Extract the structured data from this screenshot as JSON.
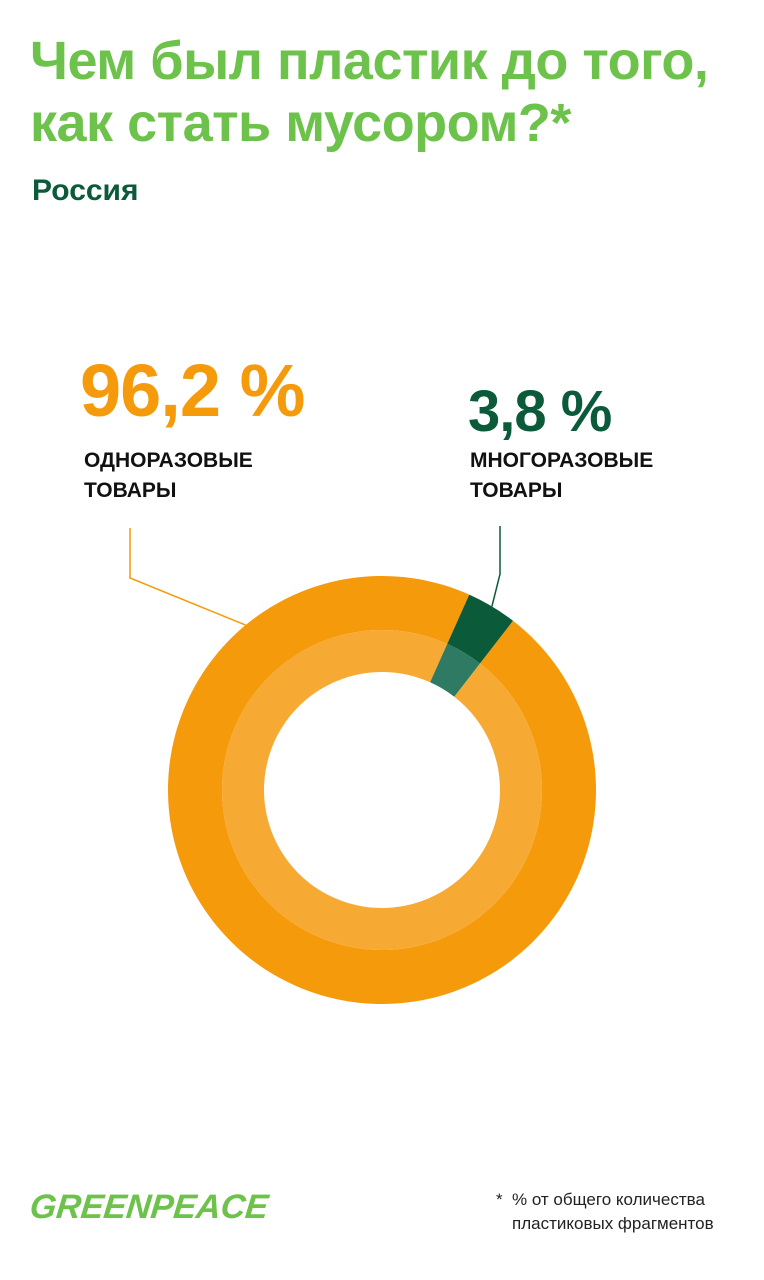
{
  "title_lines": [
    "Чем был пластик до того,",
    "как стать мусором?*"
  ],
  "subtitle": "Россия",
  "chart_data": {
    "type": "pie",
    "title": "Чем был пластик до того, как стать мусором?*",
    "subtitle": "Россия",
    "categories": [
      "ОДНОРАЗОВЫЕ ТОВАРЫ",
      "МНОГОРАЗОВЫЕ ТОВАРЫ"
    ],
    "values": [
      96.2,
      3.8
    ],
    "value_labels": [
      "96,2 %",
      "3,8 %"
    ],
    "label_lines": [
      [
        "ОДНОРАЗОВЫЕ",
        "ТОВАРЫ"
      ],
      [
        "МНОГОРАЗОВЫЕ",
        "ТОВАРЫ"
      ]
    ],
    "colors": [
      "#f59a0a",
      "#0b5a3a"
    ],
    "inner_colors": [
      "#f7aa33",
      "#2e7a62"
    ],
    "donut": true
  },
  "logo": "GREENPEACE",
  "footnote": {
    "star": "*",
    "lines": [
      "% от общего количества",
      "пластиковых фрагментов"
    ]
  }
}
